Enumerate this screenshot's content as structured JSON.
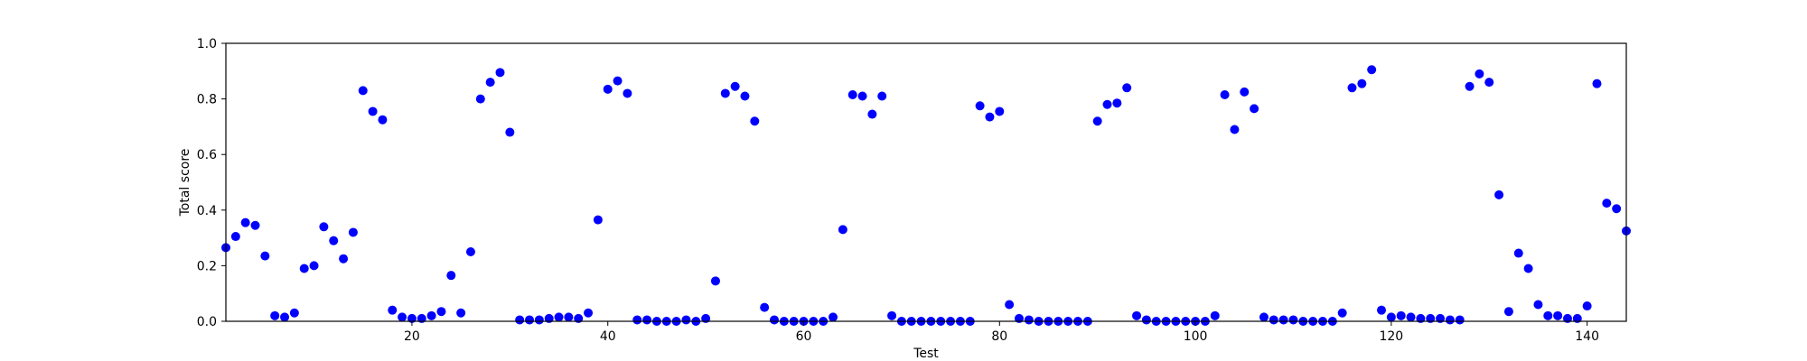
{
  "chart_data": {
    "type": "scatter",
    "title": "",
    "xlabel": "Test",
    "ylabel": "Total score",
    "xlim": [
      1,
      144
    ],
    "ylim": [
      0.0,
      1.0
    ],
    "x_ticks": [
      20,
      40,
      60,
      80,
      100,
      120,
      140
    ],
    "y_ticks": [
      0.0,
      0.2,
      0.4,
      0.6,
      0.8,
      1.0
    ],
    "x_tick_labels": [
      "20",
      "40",
      "60",
      "80",
      "100",
      "120",
      "140"
    ],
    "y_tick_labels": [
      "0.0",
      "0.2",
      "0.4",
      "0.6",
      "0.8",
      "1.0"
    ],
    "grid": false,
    "marker_color": "#0000ff",
    "series": [
      {
        "x": [
          1,
          2,
          3,
          4,
          5,
          6,
          7,
          8,
          9,
          10,
          11,
          12,
          13,
          14,
          15,
          16,
          17,
          18,
          19,
          20,
          21,
          22,
          23,
          24,
          25,
          26,
          27,
          28,
          29,
          30,
          31,
          32,
          33,
          34,
          35,
          36,
          37,
          38,
          39,
          40,
          41,
          42,
          43,
          44,
          45,
          46,
          47,
          48,
          49,
          50,
          51,
          52,
          53,
          54,
          55,
          56,
          57,
          58,
          59,
          60,
          61,
          62,
          63,
          64,
          65,
          66,
          67,
          68,
          69,
          70,
          71,
          72,
          73,
          74,
          75,
          76,
          77,
          78,
          79,
          80,
          81,
          82,
          83,
          84,
          85,
          86,
          87,
          88,
          89,
          90,
          91,
          92,
          93,
          94,
          95,
          96,
          97,
          98,
          99,
          100,
          101,
          102,
          103,
          104,
          105,
          106,
          107,
          108,
          109,
          110,
          111,
          112,
          113,
          114,
          115,
          116,
          117,
          118,
          119,
          120,
          121,
          122,
          123,
          124,
          125,
          126,
          127,
          128,
          129,
          130,
          131,
          132,
          133,
          134,
          135,
          136,
          137,
          138,
          139,
          140,
          141,
          142,
          143,
          144
        ],
        "y": [
          0.265,
          0.305,
          0.355,
          0.345,
          0.235,
          0.02,
          0.015,
          0.03,
          0.19,
          0.2,
          0.34,
          0.29,
          0.225,
          0.32,
          0.83,
          0.755,
          0.725,
          0.04,
          0.015,
          0.01,
          0.01,
          0.02,
          0.035,
          0.165,
          0.03,
          0.25,
          0.8,
          0.86,
          0.895,
          0.68,
          0.005,
          0.005,
          0.005,
          0.01,
          0.015,
          0.015,
          0.01,
          0.03,
          0.365,
          0.835,
          0.865,
          0.82,
          0.005,
          0.005,
          0.0,
          0.0,
          0.0,
          0.005,
          0.0,
          0.01,
          0.145,
          0.82,
          0.845,
          0.81,
          0.72,
          0.05,
          0.005,
          0.0,
          0.0,
          0.0,
          0.0,
          0.0,
          0.015,
          0.33,
          0.815,
          0.81,
          0.745,
          0.81,
          0.02,
          0.0,
          0.0,
          0.0,
          0.0,
          0.0,
          0.0,
          0.0,
          0.0,
          0.775,
          0.735,
          0.755,
          0.06,
          0.01,
          0.005,
          0.0,
          0.0,
          0.0,
          0.0,
          0.0,
          0.0,
          0.72,
          0.78,
          0.785,
          0.84,
          0.02,
          0.005,
          0.0,
          0.0,
          0.0,
          0.0,
          0.0,
          0.0,
          0.02,
          0.815,
          0.69,
          0.825,
          0.765,
          0.015,
          0.005,
          0.005,
          0.005,
          0.0,
          0.0,
          0.0,
          0.0,
          0.03,
          0.84,
          0.855,
          0.905,
          0.04,
          0.015,
          0.02,
          0.015,
          0.01,
          0.01,
          0.01,
          0.005,
          0.005,
          0.845,
          0.89,
          0.86,
          0.455,
          0.035,
          0.245,
          0.19,
          0.06,
          0.02,
          0.02,
          0.01,
          0.01,
          0.055,
          0.855,
          0.425,
          0.405,
          0.325
        ]
      }
    ]
  }
}
